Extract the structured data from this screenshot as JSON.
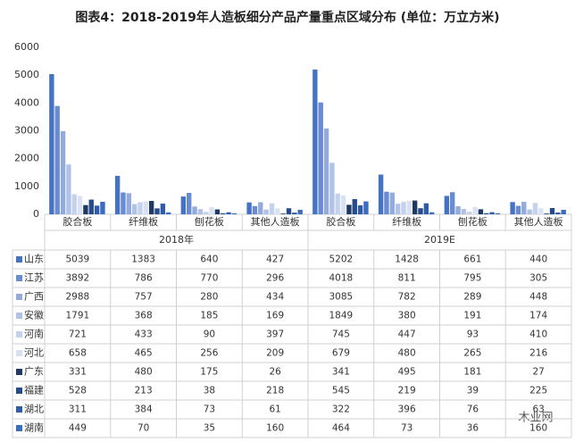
{
  "chart_data": {
    "type": "bar",
    "title": "图表4：2018-2019年人造板细分产品产量重点区域分布 (单位：万立方米)",
    "categories": [
      "胶合板",
      "纤维板",
      "刨花板",
      "其他人造板",
      "胶合板",
      "纤维板",
      "刨花板",
      "其他人造板"
    ],
    "groups": [
      "2018年",
      "2019E"
    ],
    "ylim": [
      0,
      6000
    ],
    "yticks": [
      0,
      1000,
      2000,
      3000,
      4000,
      5000,
      6000
    ],
    "grid": false,
    "series": [
      {
        "name": "山东",
        "color": "#4472c4",
        "values": [
          5039,
          1383,
          640,
          427,
          5202,
          1428,
          661,
          440
        ]
      },
      {
        "name": "江苏",
        "color": "#6a8bd0",
        "values": [
          3892,
          786,
          770,
          296,
          4018,
          811,
          795,
          305
        ]
      },
      {
        "name": "广西",
        "color": "#93abdc",
        "values": [
          2988,
          757,
          280,
          434,
          3085,
          782,
          289,
          448
        ]
      },
      {
        "name": "安徽",
        "color": "#b0c2e6",
        "values": [
          1791,
          368,
          185,
          169,
          1849,
          380,
          191,
          174
        ]
      },
      {
        "name": "河南",
        "color": "#c4d2ed",
        "values": [
          721,
          433,
          90,
          397,
          745,
          447,
          93,
          410
        ]
      },
      {
        "name": "河北",
        "color": "#d9e2f3",
        "values": [
          658,
          465,
          256,
          209,
          679,
          480,
          265,
          216
        ]
      },
      {
        "name": "广东",
        "color": "#1f3864",
        "values": [
          331,
          480,
          175,
          26,
          341,
          495,
          181,
          27
        ]
      },
      {
        "name": "福建",
        "color": "#264b8a",
        "values": [
          528,
          213,
          38,
          218,
          545,
          219,
          39,
          225
        ]
      },
      {
        "name": "湖北",
        "color": "#2e5ca8",
        "values": [
          311,
          384,
          73,
          61,
          322,
          396,
          76,
          63
        ]
      },
      {
        "name": "湖南",
        "color": "#3a6cc2",
        "values": [
          449,
          70,
          35,
          160,
          464,
          73,
          36,
          160
        ]
      }
    ],
    "watermark": "木业网"
  }
}
